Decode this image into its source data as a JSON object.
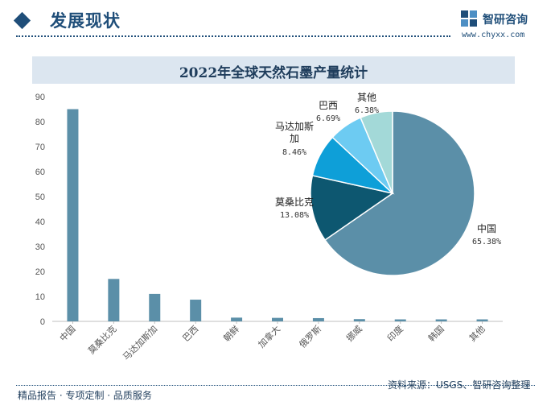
{
  "header": {
    "section_title": "发展现状",
    "logo_name": "智研咨询",
    "logo_url": "www.chyxx.com"
  },
  "footer": {
    "tagline": "精品报告 · 专项定制 · 品质服务",
    "source": "资料来源：USGS、智研咨询整理"
  },
  "colors": {
    "bar": "#5b8fa8",
    "pie": [
      "#5b8fa8",
      "#0d5770",
      "#0e9fd8",
      "#6dcbf2",
      "#a3d9d8"
    ]
  },
  "chart_data": [
    {
      "type": "bar",
      "title": "2022年全球天然石墨产量统计",
      "categories": [
        "中国",
        "莫桑比克",
        "马达加斯加",
        "巴西",
        "朝鲜",
        "加拿大",
        "俄罗斯",
        "挪威",
        "印度",
        "韩国",
        "其他"
      ],
      "values": [
        85,
        17,
        11,
        8.7,
        1.5,
        1.4,
        1.3,
        0.9,
        0.8,
        0.8,
        0.8
      ],
      "ylim": [
        0,
        90
      ],
      "yticks": [
        "0",
        "10",
        "20",
        "30",
        "40",
        "50",
        "60",
        "70",
        "80",
        "90"
      ],
      "xlabel": "",
      "ylabel": ""
    },
    {
      "type": "pie",
      "slices": [
        {
          "label": "中国",
          "value": 65.38,
          "text": "65.38%"
        },
        {
          "label": "莫桑比克",
          "value": 13.08,
          "text": "13.08%"
        },
        {
          "label": "马达加斯加",
          "value": 8.46,
          "text": "8.46%"
        },
        {
          "label": "巴西",
          "value": 6.69,
          "text": "6.69%"
        },
        {
          "label": "其他",
          "value": 6.38,
          "text": "6.38%"
        }
      ]
    }
  ]
}
